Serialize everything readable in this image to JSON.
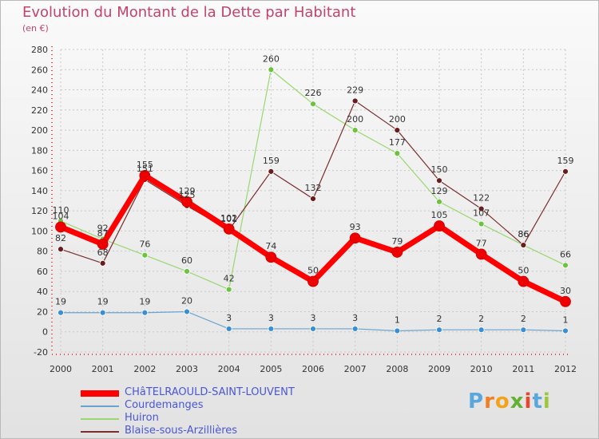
{
  "title": "Evolution du Montant de la Dette par Habitant",
  "subtitle": "(en €)",
  "logo": {
    "letters": [
      "P",
      "r",
      "o",
      "x",
      "i",
      "t",
      "i"
    ],
    "colors": [
      "#5aa7dd",
      "#f07f23",
      "#f3a31a",
      "#63b032",
      "#e8452e",
      "#5aa7dd",
      "#9bc83b"
    ]
  },
  "chart_data": {
    "type": "line",
    "title": "Evolution du Montant de la Dette par Habitant",
    "ylabel": "(en €)",
    "xlabel": "",
    "x": [
      "2000",
      "2001",
      "2002",
      "2003",
      "2004",
      "2005",
      "2006",
      "2007",
      "2008",
      "2009",
      "2010",
      "2011",
      "2012"
    ],
    "ylim": [
      -20,
      280
    ],
    "yticks": [
      -20,
      0,
      20,
      40,
      60,
      80,
      100,
      120,
      140,
      160,
      180,
      200,
      220,
      240,
      260,
      280
    ],
    "grid": true,
    "legend": "bottom-left",
    "series": [
      {
        "name": "CHâTELRAOULD-SAINT-LOUVENT",
        "color": "#ff0000",
        "width": 7,
        "pointColor": "#ee0000",
        "values": [
          104,
          87,
          155,
          129,
          102,
          74,
          50,
          93,
          79,
          105,
          77,
          50,
          30
        ],
        "labels": [
          "104",
          "87",
          "155",
          "129",
          "102",
          "74",
          "50",
          "93",
          "79",
          "105",
          "77",
          "50",
          "30"
        ]
      },
      {
        "name": "Courdemanges",
        "color": "#6aa3cd",
        "width": 1.2,
        "pointColor": "#3a8fd4",
        "values": [
          19,
          19,
          19,
          20,
          3,
          3,
          3,
          3,
          1,
          2,
          2,
          2,
          1
        ],
        "labels": [
          "19",
          "19",
          "19",
          "20",
          "3",
          "3",
          "3",
          "3",
          "1",
          "2",
          "2",
          "2",
          "1"
        ]
      },
      {
        "name": "Huiron",
        "color": "#99d870",
        "width": 1.2,
        "pointColor": "#6cc33e",
        "values": [
          110,
          92,
          76,
          60,
          42,
          260,
          226,
          200,
          177,
          129,
          107,
          86,
          66
        ],
        "labels": [
          "110",
          "92",
          "76",
          "60",
          "42",
          "260",
          "226",
          "200",
          "177",
          "129",
          "107",
          "86",
          "66"
        ]
      },
      {
        "name": "Blaise-sous-Arzillières",
        "color": "#7a2e2e",
        "width": 1.2,
        "pointColor": "#6a1b1b",
        "values": [
          82,
          68,
          151,
          125,
          101,
          159,
          132,
          229,
          200,
          150,
          122,
          86,
          159
        ],
        "labels": [
          "82",
          "68",
          "151",
          "125",
          "101",
          "159",
          "132",
          "229",
          "200",
          "150",
          "122",
          "86",
          "159"
        ]
      }
    ]
  }
}
